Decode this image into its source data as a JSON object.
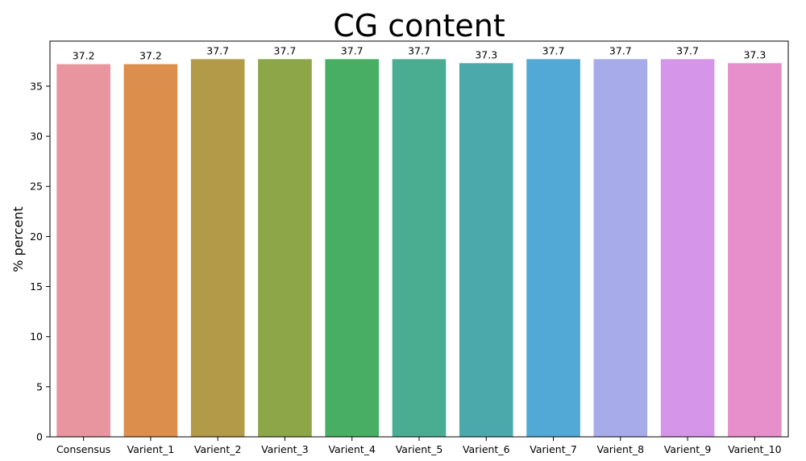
{
  "chart_data": {
    "type": "bar",
    "title": "CG content",
    "xlabel": "",
    "ylabel": "% percent",
    "ylim": [
      0,
      39.5
    ],
    "yticks": [
      0,
      5,
      10,
      15,
      20,
      25,
      30,
      35
    ],
    "grid": false,
    "legend": "none",
    "categories": [
      "Consensus",
      "Varient_1",
      "Varient_2",
      "Varient_3",
      "Varient_4",
      "Varient_5",
      "Varient_6",
      "Varient_7",
      "Varient_8",
      "Varient_9",
      "Varient_10"
    ],
    "values": [
      37.2,
      37.2,
      37.7,
      37.7,
      37.7,
      37.7,
      37.3,
      37.7,
      37.7,
      37.7,
      37.3
    ],
    "data_labels": [
      "37.2",
      "37.2",
      "37.7",
      "37.7",
      "37.7",
      "37.7",
      "37.3",
      "37.7",
      "37.7",
      "37.7",
      "37.3"
    ],
    "colors": [
      "#e8959f",
      "#dc8e4c",
      "#b29a48",
      "#8da648",
      "#48ae63",
      "#4aac91",
      "#4ba9ac",
      "#53a9d5",
      "#a8abea",
      "#d595e8",
      "#e68fca"
    ]
  }
}
